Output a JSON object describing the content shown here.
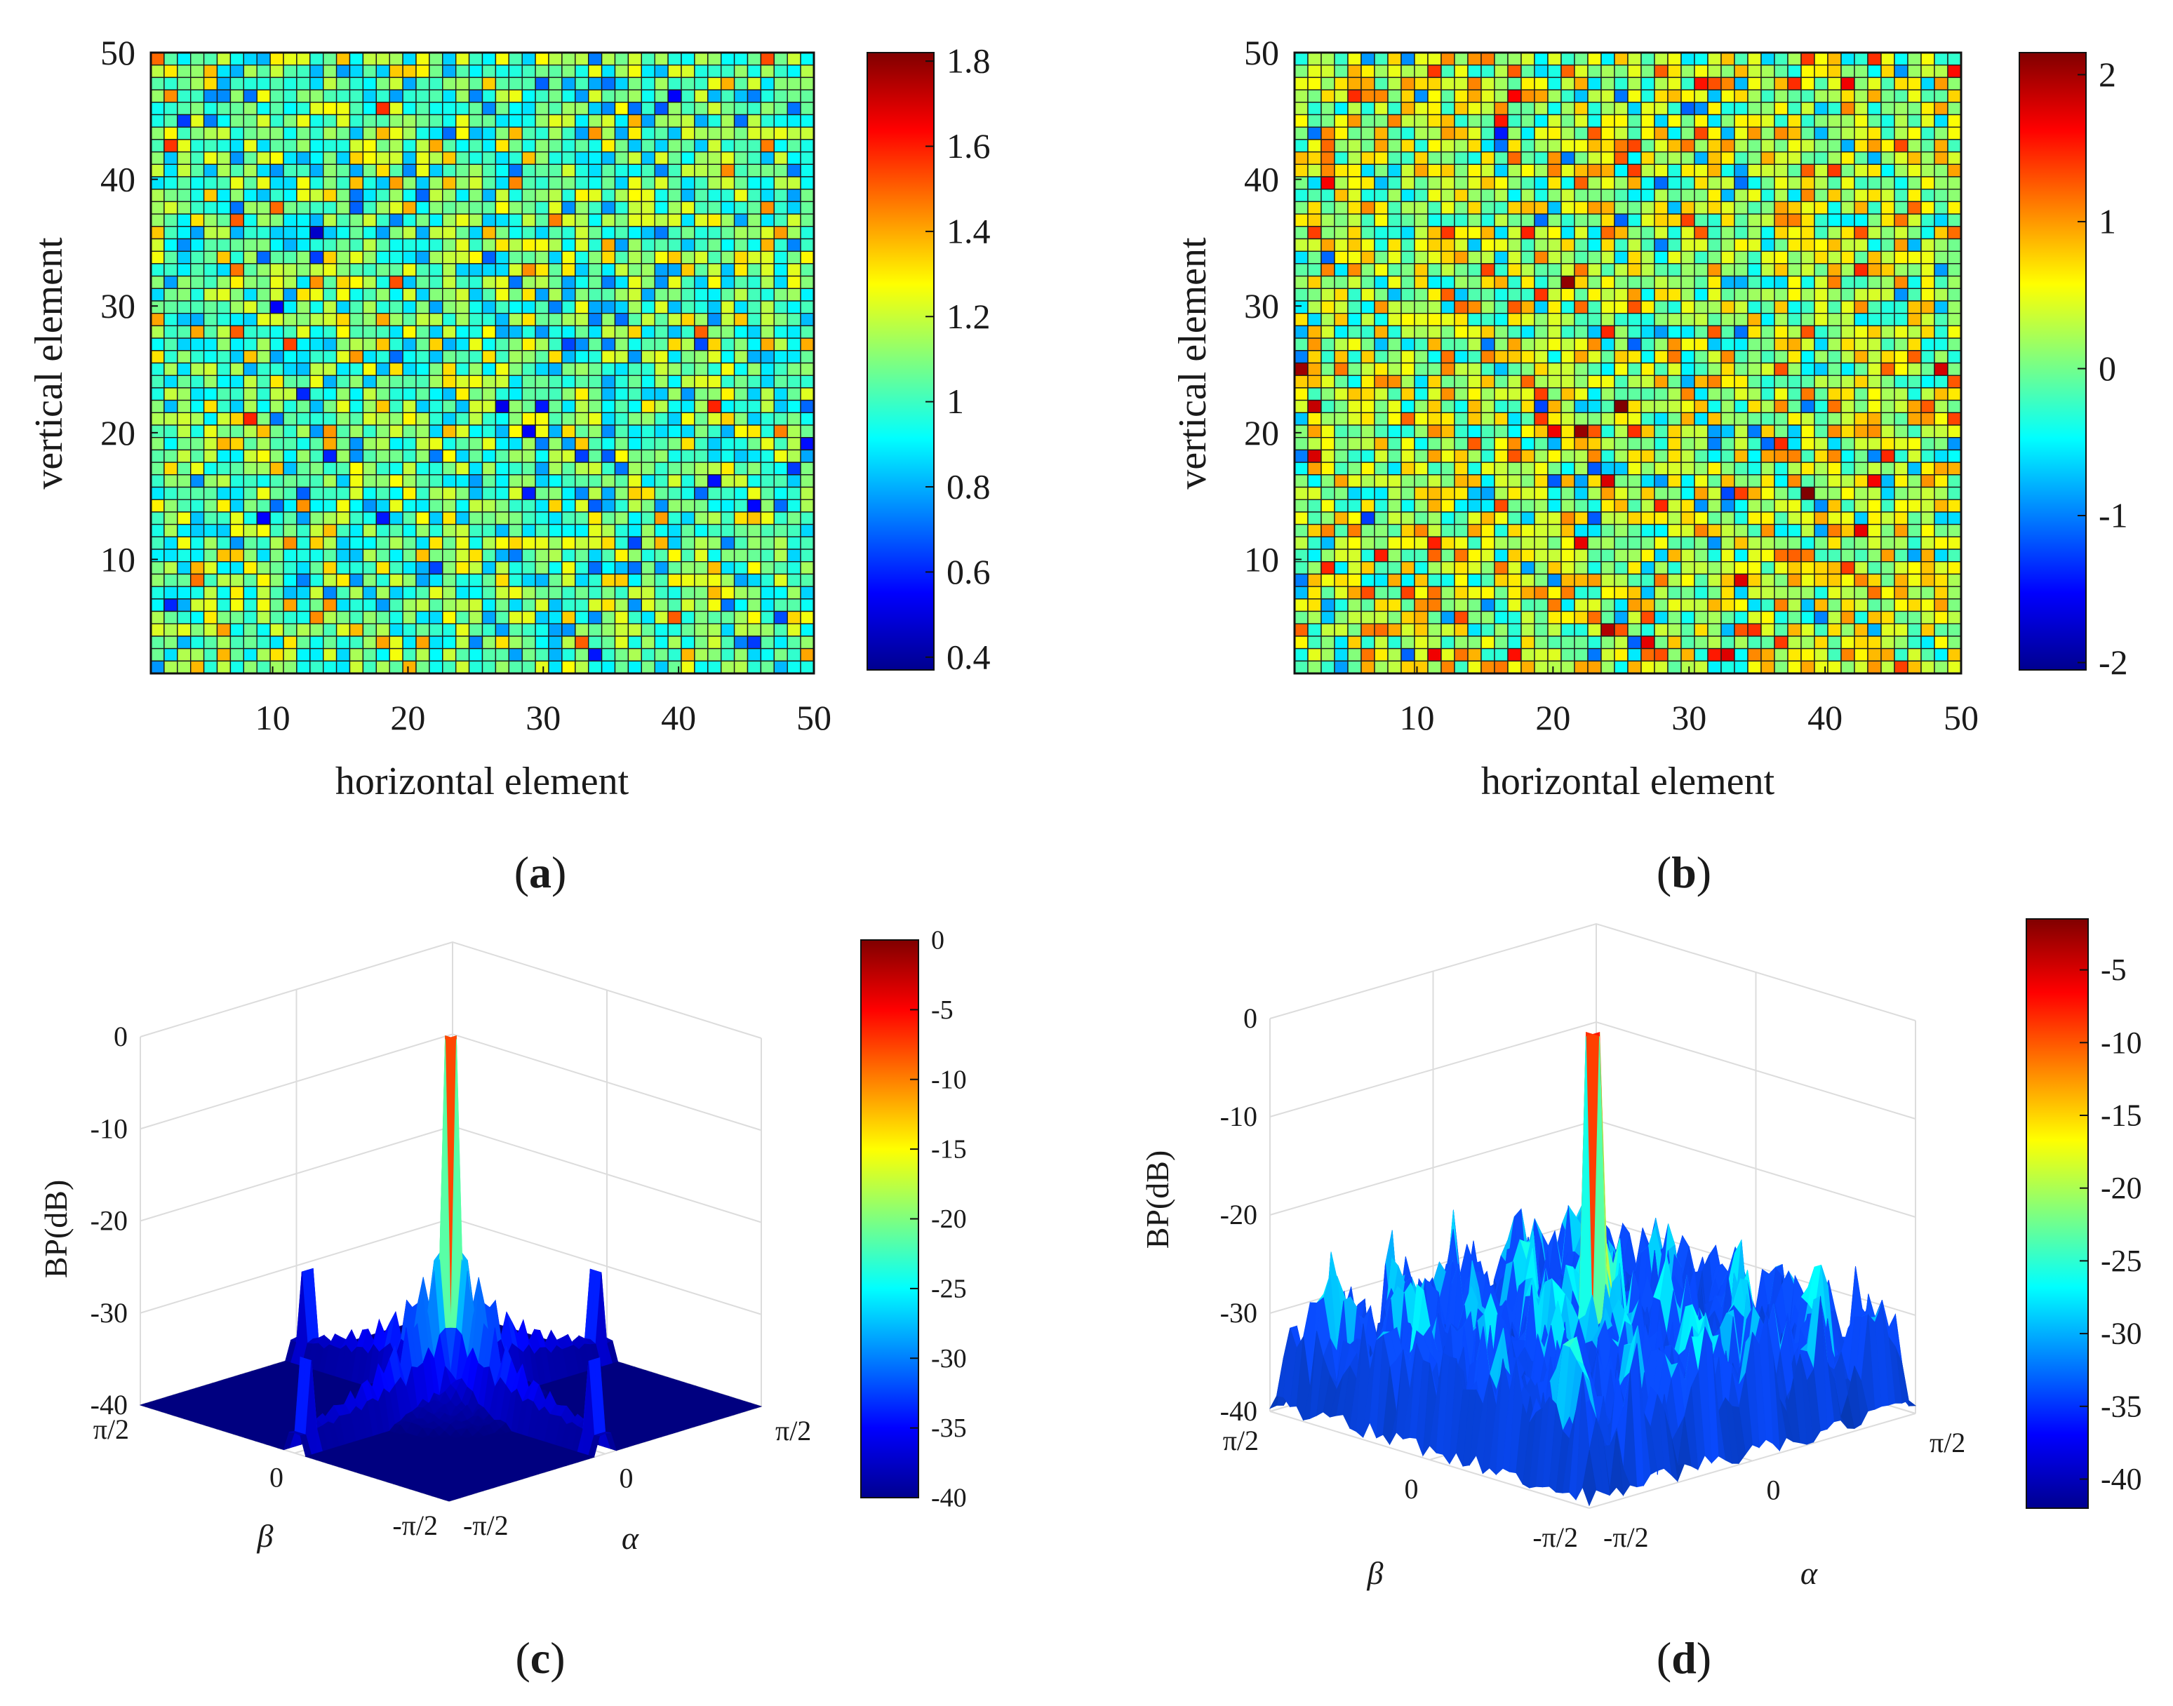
{
  "chart_data": [
    {
      "id": "a",
      "type": "heatmap",
      "caption_letter": "a",
      "xlabel": "horizontal element",
      "ylabel": "vertical element",
      "grid_size": [
        50,
        50
      ],
      "xlim": [
        1,
        50
      ],
      "ylim": [
        1,
        50
      ],
      "xticks": [
        "10",
        "20",
        "30",
        "40",
        "50"
      ],
      "yticks": [
        "10",
        "20",
        "30",
        "40",
        "50"
      ],
      "colorbar": {
        "min": 0.37,
        "max": 1.82,
        "ticks": [
          "1.8",
          "1.6",
          "1.4",
          "1.2",
          "1",
          "0.8",
          "0.6",
          "0.4"
        ],
        "tick_values": [
          1.8,
          1.6,
          1.4,
          1.2,
          1.0,
          0.8,
          0.6,
          0.4
        ]
      },
      "value_distribution": {
        "mean": 1.05,
        "spread": 0.16,
        "min": 0.37,
        "max": 1.82,
        "seed": 7
      },
      "colormap": "jet"
    },
    {
      "id": "b",
      "type": "heatmap",
      "caption_letter": "b",
      "xlabel": "horizontal element",
      "ylabel": "vertical element",
      "grid_size": [
        50,
        50
      ],
      "xlim": [
        1,
        50
      ],
      "ylim": [
        1,
        50
      ],
      "xticks": [
        "10",
        "20",
        "30",
        "40",
        "50"
      ],
      "yticks": [
        "10",
        "20",
        "30",
        "40",
        "50"
      ],
      "colorbar": {
        "min": -2.05,
        "max": 2.15,
        "ticks": [
          "2",
          "1",
          "0",
          "-1",
          "-2"
        ],
        "tick_values": [
          2,
          1,
          0,
          -1,
          -2
        ]
      },
      "value_distribution": {
        "mean": 0.25,
        "spread": 0.55,
        "min": -2.05,
        "max": 2.15,
        "seed": 19
      },
      "colormap": "jet"
    },
    {
      "id": "c",
      "type": "surface3d",
      "caption_letter": "c",
      "zlabel": "BP(dB)",
      "xlabel": "α",
      "ylabel": "β",
      "zticks": [
        "0",
        "-10",
        "-20",
        "-30",
        "-40"
      ],
      "zlim": [
        -40,
        0
      ],
      "alpha_ticks": [
        "-π/2",
        "0",
        "π/2"
      ],
      "beta_ticks": [
        "π/2",
        "0",
        "-π/2"
      ],
      "colorbar": {
        "min": -40,
        "max": 0,
        "ticks": [
          "0",
          "-5",
          "-10",
          "-15",
          "-20",
          "-25",
          "-30",
          "-35",
          "-40"
        ],
        "tick_values": [
          0,
          -5,
          -10,
          -15,
          -20,
          -25,
          -30,
          -35,
          -40
        ]
      },
      "main_lobe_peak_db": 0,
      "sidelobe_level_db": -30,
      "floor_db": -40,
      "colormap": "jet"
    },
    {
      "id": "d",
      "type": "surface3d",
      "caption_letter": "d",
      "zlabel": "BP(dB)",
      "xlabel": "α",
      "ylabel": "β",
      "zticks": [
        "0",
        "-10",
        "-20",
        "-30",
        "-40"
      ],
      "zlim": [
        -40,
        0
      ],
      "alpha_ticks": [
        "-π/2",
        "0",
        "π/2"
      ],
      "beta_ticks": [
        "π/2",
        "0",
        "-π/2"
      ],
      "colorbar": {
        "min": -42,
        "max": -1.5,
        "ticks": [
          "-5",
          "-10",
          "-15",
          "-20",
          "-25",
          "-30",
          "-35",
          "-40"
        ],
        "tick_values": [
          -5,
          -10,
          -15,
          -20,
          -25,
          -30,
          -35,
          -40
        ]
      },
      "main_lobe_peak_db": -1.5,
      "sidelobe_level_db": -29,
      "floor_db": -40,
      "colormap": "jet"
    }
  ]
}
